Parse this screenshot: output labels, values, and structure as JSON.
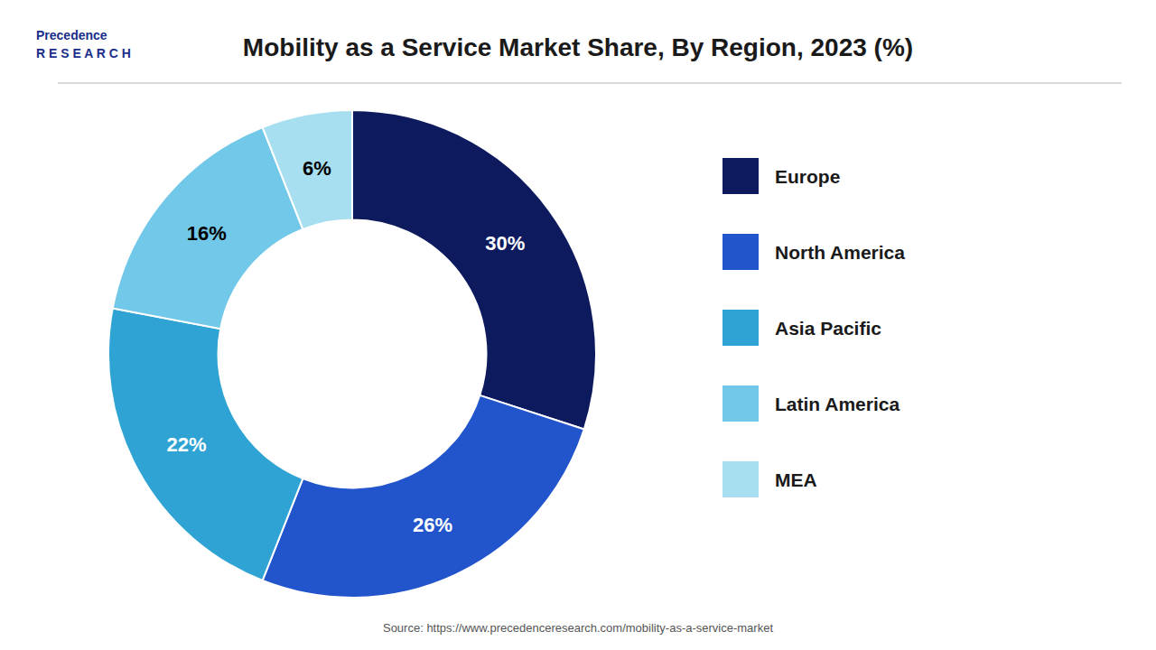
{
  "chart_data": {
    "type": "donut",
    "title": "Mobility as a Service Market Share, By Region, 2023 (%)",
    "categories": [
      "Europe",
      "North America",
      "Asia Pacific",
      "Latin America",
      "MEA"
    ],
    "values": [
      30,
      26,
      22,
      16,
      6
    ],
    "value_labels": [
      "30%",
      "26%",
      "22%",
      "16%",
      "6%"
    ],
    "colors": [
      "#0d1b5e",
      "#2255cc",
      "#2fa3d4",
      "#72c8e8",
      "#a8dff0"
    ],
    "data_labels": true,
    "legend": "right",
    "annotations": [
      "Source: https://www.precedenceresearch.com/mobility-as-a-service-market",
      "Precedence\nR E S E A R C H"
    ]
  }
}
